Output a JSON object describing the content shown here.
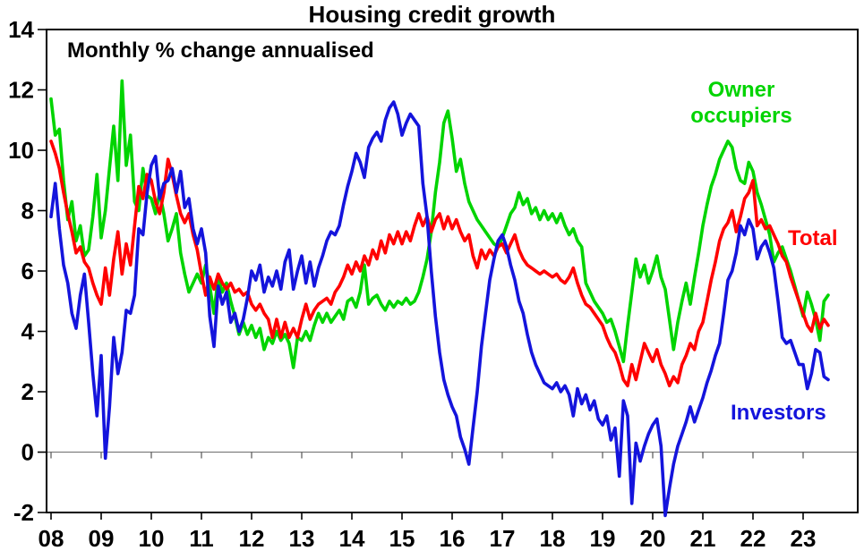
{
  "title": "Housing credit growth",
  "subtitle": "Monthly % change annualised",
  "chart_data": {
    "type": "line",
    "x_unit": "year-month",
    "x_start_year": 2008,
    "points_per_year": 12,
    "x_tick_labels": [
      "08",
      "09",
      "10",
      "11",
      "12",
      "13",
      "14",
      "15",
      "16",
      "17",
      "18",
      "19",
      "20",
      "21",
      "22",
      "23"
    ],
    "y_ticks": [
      -2,
      0,
      2,
      4,
      6,
      8,
      10,
      12,
      14
    ],
    "ylim": [
      -2,
      14
    ],
    "grid": "zero-line-only",
    "legend_position": "labels-inside-plot",
    "axis_color": "#000000",
    "zero_line_color": "#7f7f7f",
    "series": [
      {
        "name": "Owner occupiers",
        "label": "Owner\noccupiers",
        "color": "#00d400",
        "values": [
          11.7,
          10.5,
          10.7,
          9.0,
          7.7,
          8.3,
          7.0,
          7.5,
          6.5,
          6.7,
          7.8,
          9.2,
          7.1,
          8.0,
          9.4,
          10.8,
          9.0,
          12.3,
          9.5,
          10.5,
          8.3,
          8.0,
          9.4,
          8.5,
          8.4,
          7.9,
          8.6,
          7.9,
          7.0,
          7.4,
          7.9,
          6.6,
          5.9,
          5.3,
          5.6,
          5.9,
          5.6,
          6.2,
          5.5,
          4.6,
          5.8,
          5.3,
          5.6,
          5.0,
          4.5,
          3.9,
          4.3,
          3.9,
          4.2,
          3.8,
          4.1,
          3.4,
          3.8,
          3.6,
          4.0,
          3.7,
          3.9,
          3.6,
          2.8,
          3.8,
          3.7,
          4.0,
          3.7,
          4.2,
          4.6,
          4.3,
          4.6,
          4.3,
          4.5,
          4.7,
          4.4,
          5.0,
          5.1,
          4.8,
          5.3,
          6.2,
          4.9,
          5.1,
          5.2,
          4.9,
          4.7,
          5.0,
          4.8,
          5.0,
          4.9,
          5.1,
          4.9,
          5.0,
          5.3,
          5.8,
          6.4,
          7.3,
          8.6,
          9.6,
          10.9,
          11.3,
          10.4,
          9.3,
          9.7,
          8.9,
          8.3,
          8.0,
          7.7,
          7.5,
          7.3,
          7.1,
          6.9,
          6.8,
          7.1,
          7.5,
          7.9,
          8.1,
          8.6,
          8.2,
          8.4,
          7.9,
          8.1,
          7.7,
          8.0,
          7.7,
          7.9,
          7.6,
          7.9,
          7.5,
          7.2,
          7.4,
          7.0,
          6.8,
          5.6,
          5.3,
          5.0,
          4.8,
          4.6,
          4.3,
          4.4,
          4.0,
          3.5,
          3.0,
          4.2,
          5.3,
          6.4,
          5.8,
          6.2,
          5.6,
          6.0,
          6.5,
          5.8,
          5.4,
          4.4,
          3.4,
          4.3,
          5.0,
          5.6,
          4.9,
          5.8,
          6.6,
          7.5,
          8.2,
          8.8,
          9.2,
          9.7,
          10.0,
          10.3,
          10.1,
          9.4,
          9.0,
          8.9,
          9.6,
          9.3,
          8.6,
          8.2,
          7.7,
          7.2,
          6.3,
          6.6,
          6.8,
          6.4,
          6.0,
          5.5,
          5.0,
          4.5,
          5.3,
          4.9,
          4.4,
          3.7,
          5.0,
          5.2
        ]
      },
      {
        "name": "Total",
        "label": "Total",
        "color": "#ff0000",
        "values": [
          10.3,
          9.9,
          9.4,
          8.6,
          7.9,
          7.3,
          6.6,
          6.8,
          6.3,
          6.1,
          5.6,
          5.2,
          4.9,
          6.1,
          5.2,
          6.4,
          7.3,
          5.9,
          6.9,
          6.2,
          7.5,
          8.8,
          8.4,
          9.2,
          9.0,
          8.3,
          7.9,
          8.6,
          9.7,
          9.2,
          8.5,
          7.9,
          7.6,
          7.9,
          7.2,
          6.7,
          5.9,
          5.2,
          5.8,
          5.4,
          5.9,
          5.6,
          5.4,
          5.6,
          5.3,
          5.4,
          5.2,
          5.3,
          4.9,
          4.7,
          4.9,
          4.6,
          4.4,
          3.8,
          4.4,
          3.8,
          4.3,
          3.8,
          4.1,
          3.8,
          4.4,
          4.9,
          4.4,
          4.7,
          4.9,
          5.0,
          5.1,
          4.9,
          5.3,
          5.5,
          5.8,
          6.2,
          5.9,
          6.3,
          6.0,
          6.5,
          6.2,
          6.7,
          6.4,
          7.0,
          6.6,
          7.2,
          6.9,
          7.3,
          6.9,
          7.3,
          7.0,
          7.5,
          7.9,
          7.5,
          7.8,
          7.3,
          7.7,
          7.9,
          7.4,
          7.8,
          7.4,
          7.7,
          7.3,
          7.0,
          7.2,
          6.5,
          6.1,
          6.7,
          6.4,
          6.7,
          6.5,
          6.8,
          6.9,
          6.6,
          6.9,
          7.2,
          6.7,
          6.4,
          6.2,
          6.1,
          6.0,
          5.9,
          6.0,
          5.9,
          5.8,
          5.9,
          5.7,
          5.6,
          5.8,
          6.1,
          5.6,
          5.2,
          4.9,
          4.8,
          4.6,
          4.4,
          4.2,
          3.8,
          3.5,
          3.3,
          2.9,
          2.4,
          2.2,
          2.9,
          2.4,
          3.0,
          3.6,
          3.3,
          3.0,
          3.4,
          2.9,
          2.6,
          2.2,
          2.5,
          2.3,
          2.9,
          3.2,
          3.6,
          3.4,
          4.0,
          4.3,
          5.0,
          5.7,
          6.3,
          7.0,
          7.4,
          7.6,
          8.0,
          7.3,
          7.8,
          8.4,
          8.6,
          9.0,
          7.5,
          7.7,
          7.4,
          7.5,
          7.2,
          6.9,
          6.5,
          6.3,
          5.8,
          5.4,
          5.0,
          4.6,
          4.2,
          4.0,
          4.6,
          4.1,
          4.4,
          4.2
        ]
      },
      {
        "name": "Investors",
        "label": "Investors",
        "color": "#1414dc",
        "values": [
          7.8,
          8.9,
          7.4,
          6.2,
          5.6,
          4.6,
          4.1,
          5.2,
          5.9,
          4.3,
          2.6,
          1.2,
          3.2,
          -0.2,
          1.5,
          3.8,
          2.6,
          3.3,
          4.7,
          4.6,
          5.2,
          7.4,
          7.2,
          8.6,
          9.5,
          9.8,
          8.4,
          8.9,
          9.0,
          9.4,
          8.6,
          9.3,
          8.1,
          8.4,
          7.4,
          6.9,
          7.4,
          6.6,
          4.5,
          3.5,
          5.5,
          4.9,
          5.3,
          4.3,
          4.6,
          4.0,
          4.4,
          5.1,
          6.0,
          5.7,
          6.2,
          5.3,
          5.8,
          5.5,
          6.0,
          5.4,
          6.3,
          6.7,
          5.4,
          6.0,
          6.5,
          5.6,
          6.3,
          5.5,
          6.1,
          6.5,
          7.0,
          7.3,
          7.2,
          7.5,
          8.2,
          8.8,
          9.3,
          9.9,
          9.6,
          9.1,
          10.1,
          10.4,
          10.6,
          10.3,
          11.0,
          11.4,
          11.6,
          11.2,
          10.5,
          10.9,
          11.2,
          11.0,
          10.8,
          8.9,
          7.8,
          6.0,
          4.5,
          3.3,
          2.4,
          1.9,
          1.5,
          1.2,
          0.5,
          0.1,
          -0.4,
          0.8,
          2.0,
          3.5,
          4.6,
          5.7,
          6.4,
          7.0,
          7.2,
          6.8,
          6.2,
          5.7,
          5.0,
          4.6,
          3.9,
          3.3,
          2.9,
          2.6,
          2.3,
          2.2,
          2.1,
          2.3,
          2.0,
          2.2,
          1.9,
          1.2,
          2.1,
          1.6,
          1.9,
          1.4,
          1.7,
          1.1,
          0.9,
          1.2,
          0.4,
          0.8,
          -0.8,
          1.7,
          1.2,
          -1.7,
          0.3,
          -0.3,
          0.2,
          0.6,
          0.9,
          1.1,
          0.2,
          -2.1,
          -1.2,
          -0.4,
          0.2,
          0.6,
          1.0,
          1.5,
          1.0,
          1.4,
          1.8,
          2.3,
          2.7,
          3.2,
          3.6,
          4.6,
          5.7,
          6.0,
          6.6,
          7.5,
          7.2,
          7.7,
          7.4,
          6.4,
          6.8,
          7.0,
          6.6,
          6.1,
          5.0,
          3.8,
          3.6,
          3.7,
          3.3,
          2.9,
          2.9,
          2.1,
          2.6,
          3.4,
          3.3,
          2.5,
          2.4
        ]
      }
    ]
  }
}
